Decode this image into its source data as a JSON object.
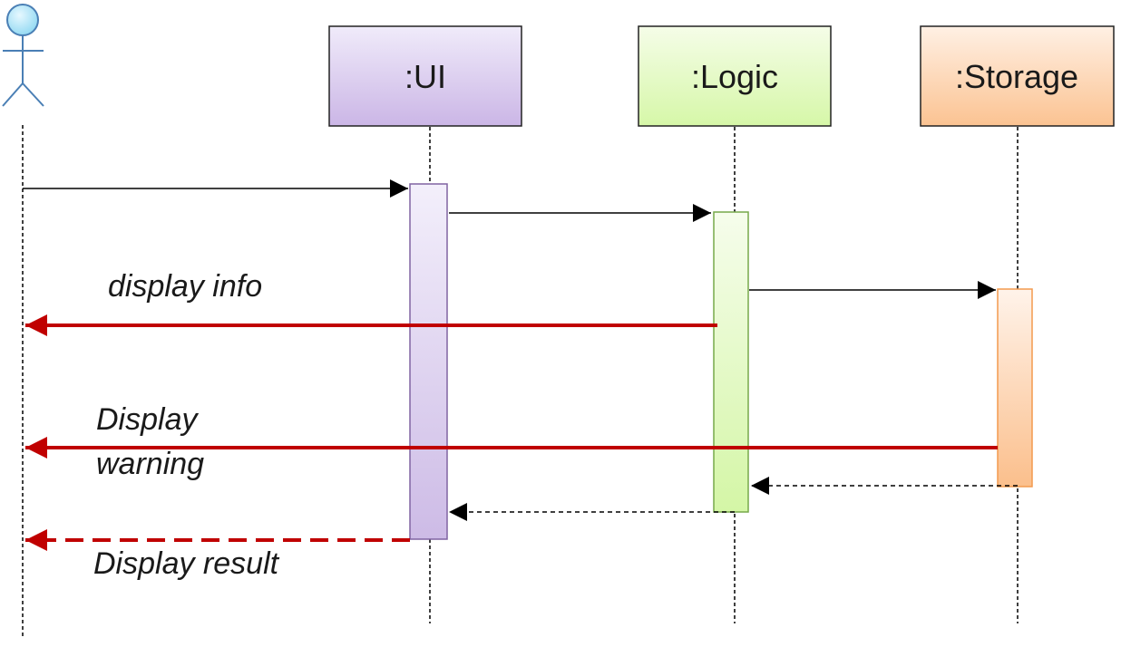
{
  "actor": {
    "name": "",
    "icon": "user-stick-figure-icon"
  },
  "participants": [
    {
      "id": "ui",
      "label": ":UI",
      "fill_top": "#f0ebfa",
      "fill_bottom": "#cbb6e6",
      "stroke": "#222222"
    },
    {
      "id": "logic",
      "label": ":Logic",
      "fill_top": "#f5fde8",
      "fill_bottom": "#d6f7a8",
      "stroke": "#222222"
    },
    {
      "id": "storage",
      "label": ":Storage",
      "fill_top": "#fff0e4",
      "fill_bottom": "#fbc392",
      "stroke": "#222222"
    }
  ],
  "messages": [
    {
      "from": "actor",
      "to": "ui",
      "kind": "call",
      "label": ""
    },
    {
      "from": "ui",
      "to": "logic",
      "kind": "call",
      "label": ""
    },
    {
      "from": "logic",
      "to": "storage",
      "kind": "call",
      "label": ""
    },
    {
      "from": "logic",
      "to": "actor",
      "kind": "highlight-call",
      "label": "display info"
    },
    {
      "from": "storage",
      "to": "actor",
      "kind": "highlight-call",
      "label_lines": [
        "Display",
        "warning"
      ]
    },
    {
      "from": "storage",
      "to": "logic",
      "kind": "return",
      "label": ""
    },
    {
      "from": "logic",
      "to": "ui",
      "kind": "return",
      "label": ""
    },
    {
      "from": "ui",
      "to": "actor",
      "kind": "highlight-return",
      "label": "Display result"
    }
  ],
  "colors": {
    "highlight": "#c00000",
    "normal": "#000000",
    "actor_head": "#aee6f8",
    "actor_stroke": "#4a7fb5",
    "ui_activation_stroke": "#8064a2",
    "logic_activation_stroke": "#77a94a",
    "storage_activation_stroke": "#f39a4e"
  }
}
